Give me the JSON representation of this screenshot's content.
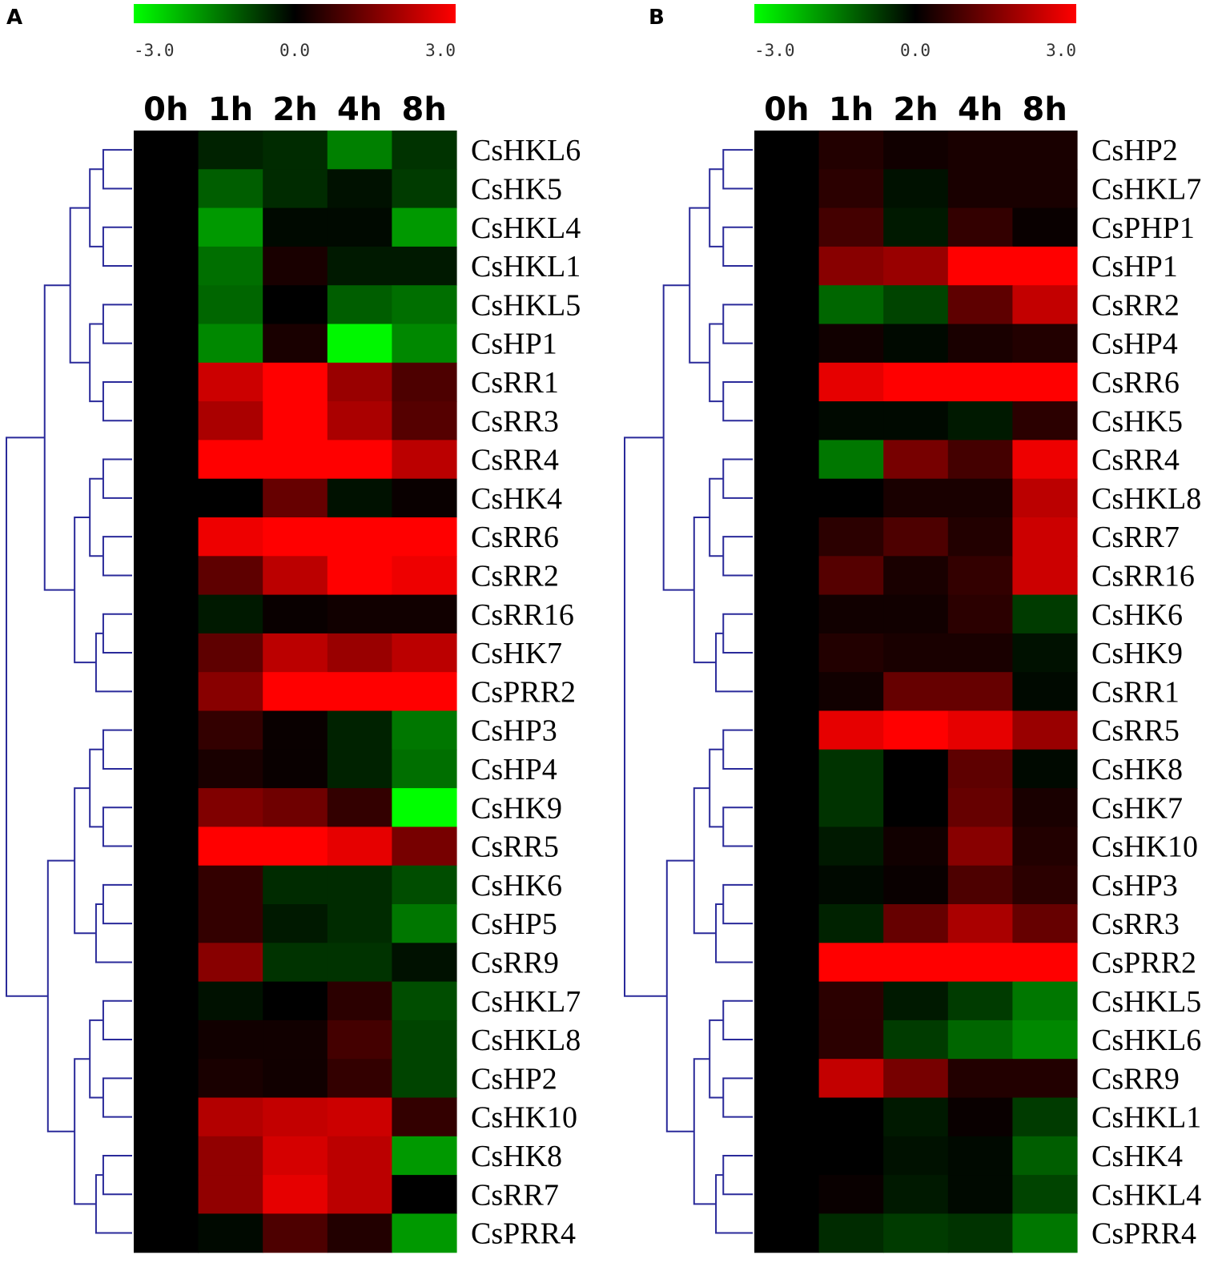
{
  "chart_data": [
    {
      "panel": "A",
      "type": "heatmap",
      "color_scale": {
        "min": -3.0,
        "mid": 0.0,
        "max": 3.0,
        "tick_labels": [
          "-3.0",
          "0.0",
          "3.0"
        ],
        "low_color": "#00ff00",
        "mid_color": "#000000",
        "high_color": "#ff0000"
      },
      "columns": [
        "0h",
        "1h",
        "2h",
        "4h",
        "8h"
      ],
      "rows": [
        "CsHKL6",
        "CsHK5",
        "CsHKL4",
        "CsHKL1",
        "CsHKL5",
        "CsHP1",
        "CsRR1",
        "CsRR3",
        "CsRR4",
        "CsHK4",
        "CsRR6",
        "CsRR2",
        "CsRR16",
        "CsHK7",
        "CsPRR2",
        "CsHP3",
        "CsHP4",
        "CsHK9",
        "CsRR5",
        "CsHK6",
        "CsHP5",
        "CsRR9",
        "CsHKL7",
        "CsHKL8",
        "CsHP2",
        "CsHK10",
        "CsHK8",
        "CsRR7",
        "CsPRR4"
      ],
      "values": [
        [
          0,
          -0.4,
          -0.5,
          -1.5,
          -0.6
        ],
        [
          0,
          -1.1,
          -0.5,
          -0.2,
          -0.7
        ],
        [
          0,
          -1.8,
          -0.1,
          -0.1,
          -1.8
        ],
        [
          0,
          -1.3,
          0.3,
          -0.3,
          -0.3
        ],
        [
          0,
          -1.2,
          0.0,
          -1.1,
          -1.3
        ],
        [
          0,
          -1.6,
          0.3,
          -2.9,
          -1.6
        ],
        [
          0,
          2.4,
          3.0,
          1.8,
          0.9
        ],
        [
          0,
          2.0,
          3.0,
          2.0,
          1.0
        ],
        [
          0,
          3.0,
          3.0,
          3.0,
          2.2
        ],
        [
          0,
          0.0,
          1.2,
          -0.2,
          0.1
        ],
        [
          0,
          2.8,
          3.0,
          3.0,
          3.0
        ],
        [
          0,
          1.1,
          2.2,
          3.0,
          2.8
        ],
        [
          0,
          -0.3,
          0.1,
          0.2,
          0.2
        ],
        [
          0,
          1.1,
          2.2,
          1.8,
          2.2
        ],
        [
          0,
          1.6,
          3.0,
          3.0,
          3.0
        ],
        [
          0,
          0.6,
          0.1,
          -0.4,
          -1.4
        ],
        [
          0,
          0.3,
          0.1,
          -0.4,
          -1.3
        ],
        [
          0,
          1.5,
          1.3,
          0.6,
          -3.0
        ],
        [
          0,
          3.0,
          3.0,
          2.7,
          1.4
        ],
        [
          0,
          0.6,
          -0.5,
          -0.5,
          -0.9
        ],
        [
          0,
          0.6,
          -0.3,
          -0.5,
          -1.4
        ],
        [
          0,
          1.6,
          -0.6,
          -0.6,
          -0.2
        ],
        [
          0,
          -0.2,
          0.0,
          0.5,
          -0.9
        ],
        [
          0,
          0.2,
          0.2,
          0.8,
          -0.8
        ],
        [
          0,
          0.3,
          0.2,
          0.6,
          -0.8
        ],
        [
          0,
          2.1,
          2.3,
          2.4,
          0.6
        ],
        [
          0,
          1.7,
          2.5,
          2.2,
          -1.8
        ],
        [
          0,
          1.7,
          2.7,
          2.2,
          0.0
        ],
        [
          0,
          -0.1,
          0.9,
          0.4,
          -1.8
        ]
      ]
    },
    {
      "panel": "B",
      "type": "heatmap",
      "color_scale": {
        "min": -3.0,
        "mid": 0.0,
        "max": 3.0,
        "tick_labels": [
          "-3.0",
          "0.0",
          "3.0"
        ],
        "low_color": "#00ff00",
        "mid_color": "#000000",
        "high_color": "#ff0000"
      },
      "columns": [
        "0h",
        "1h",
        "2h",
        "4h",
        "8h"
      ],
      "rows": [
        "CsHP2",
        "CsHKL7",
        "CsPHP1",
        "CsHP1",
        "CsRR2",
        "CsHP4",
        "CsRR6",
        "CsHK5",
        "CsRR4",
        "CsHKL8",
        "CsRR7",
        "CsRR16",
        "CsHK6",
        "CsHK9",
        "CsRR1",
        "CsRR5",
        "CsHK8",
        "CsHK7",
        "CsHK10",
        "CsHP3",
        "CsRR3",
        "CsPRR2",
        "CsHKL5",
        "CsHKL6",
        "CsRR9",
        "CsHKL1",
        "CsHK4",
        "CsHKL4",
        "CsPRR4"
      ],
      "values": [
        [
          0,
          0.4,
          0.2,
          0.3,
          0.3
        ],
        [
          0,
          0.5,
          -0.2,
          0.3,
          0.3
        ],
        [
          0,
          0.8,
          -0.3,
          0.6,
          0.1
        ],
        [
          0,
          1.6,
          1.8,
          3.0,
          3.0
        ],
        [
          0,
          -1.2,
          -0.8,
          1.1,
          2.3
        ],
        [
          0,
          0.2,
          -0.1,
          0.3,
          0.4
        ],
        [
          0,
          2.7,
          3.0,
          3.0,
          3.0
        ],
        [
          0,
          -0.1,
          -0.1,
          -0.3,
          0.5
        ],
        [
          0,
          -1.4,
          1.4,
          0.8,
          2.8
        ],
        [
          0,
          0.0,
          0.3,
          0.3,
          2.2
        ],
        [
          0,
          0.5,
          0.9,
          0.4,
          2.4
        ],
        [
          0,
          1.0,
          0.3,
          0.6,
          2.4
        ],
        [
          0,
          0.2,
          0.2,
          0.5,
          -0.7
        ],
        [
          0,
          0.4,
          0.3,
          0.3,
          -0.2
        ],
        [
          0,
          0.2,
          1.2,
          1.2,
          -0.1
        ],
        [
          0,
          2.7,
          3.0,
          2.7,
          1.8
        ],
        [
          0,
          -0.6,
          0.0,
          1.1,
          -0.1
        ],
        [
          0,
          -0.6,
          0.0,
          1.2,
          0.3
        ],
        [
          0,
          -0.3,
          0.2,
          1.6,
          0.4
        ],
        [
          0,
          -0.1,
          0.1,
          0.9,
          0.5
        ],
        [
          0,
          -0.4,
          1.2,
          2.0,
          1.2
        ],
        [
          0,
          3.0,
          3.0,
          3.0,
          3.0
        ],
        [
          0,
          0.5,
          -0.3,
          -0.7,
          -1.4
        ],
        [
          0,
          0.5,
          -0.7,
          -1.2,
          -1.6
        ],
        [
          0,
          2.3,
          1.4,
          0.4,
          0.4
        ],
        [
          0,
          0.0,
          -0.3,
          0.1,
          -0.7
        ],
        [
          0,
          0.0,
          -0.2,
          -0.1,
          -1.1
        ],
        [
          0,
          0.1,
          -0.3,
          -0.1,
          -0.8
        ],
        [
          0,
          -0.5,
          -0.7,
          -0.6,
          -1.4
        ]
      ]
    }
  ]
}
